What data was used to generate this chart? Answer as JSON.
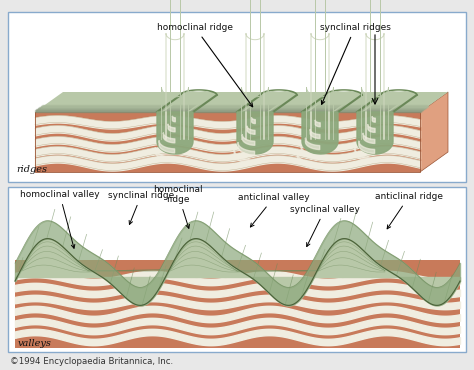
{
  "bg_color": "#e8e8e8",
  "border_color": "#88aacc",
  "rock_salmon": "#c87a5a",
  "rock_salmon_mid": "#d4896a",
  "rock_salmon_light": "#e0a080",
  "rock_salmon_dark": "#b06040",
  "green_light": "#b8c8a8",
  "green_mid": "#8ca87c",
  "green_dark": "#6a8858",
  "green_darkest": "#4a6038",
  "white_stripe": "#f0ede0",
  "off_white": "#e8e4d0",
  "text_color": "#111111",
  "font_size": 7.0,
  "copyright": "©1994 Encyclopaedia Britannica, Inc.",
  "top_label": "ridges",
  "bottom_label": "valleys"
}
